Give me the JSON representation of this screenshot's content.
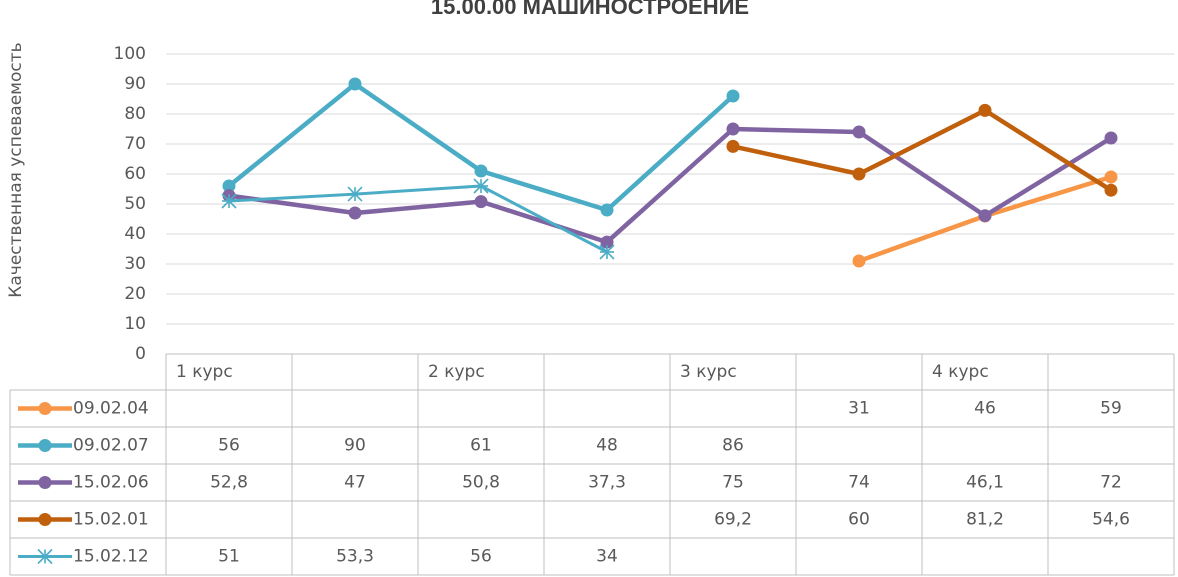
{
  "chart_data": {
    "type": "line",
    "title": "15.00.00 МАШИНОСТРОЕНИЕ",
    "y_label": "Качественная успеваемость",
    "categories": [
      "1 курс",
      null,
      "2 курс",
      null,
      "3 курс",
      null,
      "4 курс",
      null
    ],
    "ylim": [
      0,
      100
    ],
    "yticks": [
      0,
      10,
      20,
      30,
      40,
      50,
      60,
      70,
      80,
      90,
      100
    ],
    "grid": true,
    "data_table": true,
    "series": [
      {
        "name": "09.02.04",
        "color": "#f79646",
        "marker": "circle",
        "values": [
          null,
          null,
          null,
          null,
          null,
          31,
          46,
          59
        ],
        "value_labels": [
          null,
          null,
          null,
          null,
          null,
          "31",
          "46",
          "59"
        ]
      },
      {
        "name": "09.02.07",
        "color": "#4bacc6",
        "marker": "circle",
        "values": [
          56,
          90,
          61,
          48,
          86,
          null,
          null,
          null
        ],
        "value_labels": [
          "56",
          "90",
          "61",
          "48",
          "86",
          null,
          null,
          null
        ]
      },
      {
        "name": "15.02.06",
        "color": "#8064a2",
        "marker": "circle",
        "values": [
          52.8,
          47,
          50.8,
          37.3,
          75,
          74,
          46.1,
          72
        ],
        "value_labels": [
          "52,8",
          "47",
          "50,8",
          "37,3",
          "75",
          "74",
          "46,1",
          "72"
        ]
      },
      {
        "name": "15.02.01",
        "color": "#c0600c",
        "marker": "circle",
        "values": [
          null,
          null,
          null,
          null,
          69.2,
          60,
          81.2,
          54.6
        ],
        "value_labels": [
          null,
          null,
          null,
          null,
          "69,2",
          "60",
          "81,2",
          "54,6"
        ]
      },
      {
        "name": "15.02.12",
        "color": "#4bacc6",
        "marker": "star",
        "values": [
          51,
          53.3,
          56,
          34,
          null,
          null,
          null,
          null
        ],
        "value_labels": [
          "51",
          "53,3",
          "56",
          "34",
          null,
          null,
          null,
          null
        ]
      }
    ]
  }
}
